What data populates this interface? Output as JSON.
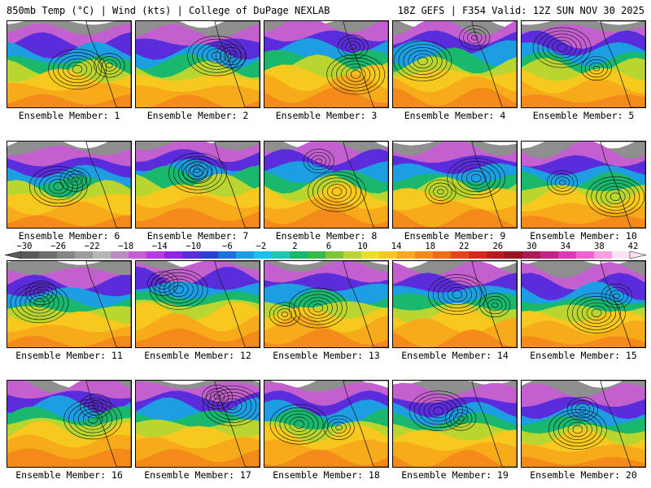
{
  "header": {
    "left": "850mb Temp (°C) | Wind (kts) | College of DuPage NEXLAB",
    "right": "18Z GEFS | F354 Valid: 12Z SUN NOV 30 2025"
  },
  "colorbar": {
    "labels": [
      "−30",
      "−26",
      "−22",
      "−18",
      "−14",
      "−10",
      "−6",
      "−2",
      "2",
      "6",
      "10",
      "14",
      "18",
      "22",
      "26",
      "30",
      "34",
      "38",
      "42"
    ],
    "colors": [
      "#5a5a5a",
      "#6e6e6e",
      "#858585",
      "#9c9c9c",
      "#b6b6b6",
      "#b78ac0",
      "#c45fcf",
      "#b63be0",
      "#8e26e4",
      "#5a2cdb",
      "#2b3fd8",
      "#1f6fe0",
      "#1d9ee3",
      "#19c3e8",
      "#1fc7b0",
      "#19b86c",
      "#38b84a",
      "#7dc63a",
      "#b9d630",
      "#eadf25",
      "#f7c91e",
      "#f7ab1a",
      "#f38a19",
      "#ee6b1b",
      "#e8451c",
      "#d8261f",
      "#b81a20",
      "#931620",
      "#a91b55",
      "#c52286",
      "#dc3bb3",
      "#ee62cf",
      "#f8a0e3",
      "#fde2f5"
    ]
  },
  "members": [
    {
      "label": "Ensemble Member: 1"
    },
    {
      "label": "Ensemble Member: 2"
    },
    {
      "label": "Ensemble Member: 3"
    },
    {
      "label": "Ensemble Member: 4"
    },
    {
      "label": "Ensemble Member: 5"
    },
    {
      "label": "Ensemble Member: 6"
    },
    {
      "label": "Ensemble Member: 7"
    },
    {
      "label": "Ensemble Member: 8"
    },
    {
      "label": "Ensemble Member: 9"
    },
    {
      "label": "Ensemble Member: 10"
    },
    {
      "label": "Ensemble Member: 11"
    },
    {
      "label": "Ensemble Member: 12"
    },
    {
      "label": "Ensemble Member: 13"
    },
    {
      "label": "Ensemble Member: 14"
    },
    {
      "label": "Ensemble Member: 15"
    },
    {
      "label": "Ensemble Member: 16"
    },
    {
      "label": "Ensemble Member: 17"
    },
    {
      "label": "Ensemble Member: 18"
    },
    {
      "label": "Ensemble Member: 19"
    },
    {
      "label": "Ensemble Member: 20"
    }
  ]
}
